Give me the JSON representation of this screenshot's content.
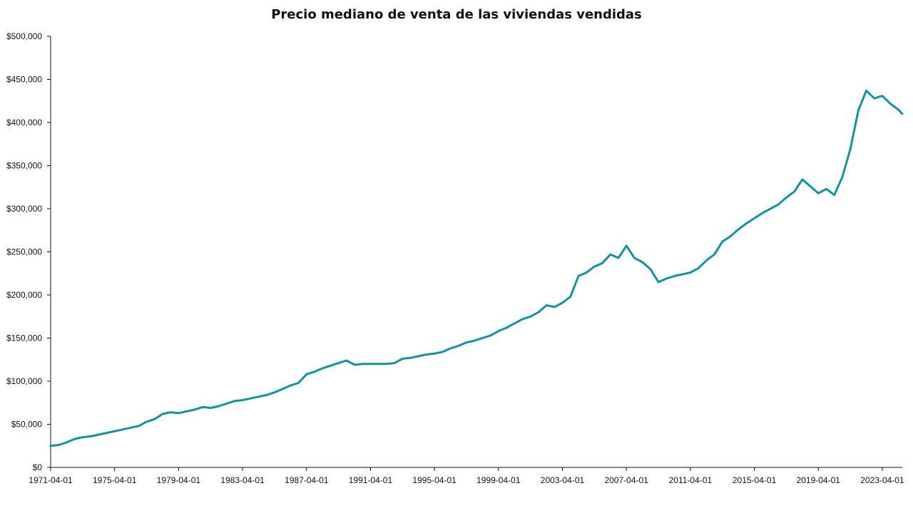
{
  "chart_data": {
    "type": "line",
    "title": "Precio mediano de venta de las viviendas vendidas",
    "xlabel": "",
    "ylabel": "",
    "ylim": [
      0,
      500000
    ],
    "grid": false,
    "line_color": "#1193a3",
    "y_ticks": [
      0,
      50000,
      100000,
      150000,
      200000,
      250000,
      300000,
      350000,
      400000,
      450000,
      500000
    ],
    "y_tick_labels": [
      "$0",
      "$50,000",
      "$100,000",
      "$150,000",
      "$200,000",
      "$250,000",
      "$300,000",
      "$350,000",
      "$400,000",
      "$450,000",
      "$500,000"
    ],
    "x_ticks": [
      "1971-04-01",
      "1975-04-01",
      "1979-04-01",
      "1983-04-01",
      "1987-04-01",
      "1991-04-01",
      "1995-04-01",
      "1999-04-01",
      "2003-04-01",
      "2007-04-01",
      "2011-04-01",
      "2015-04-01",
      "2019-04-01",
      "2023-04-01"
    ],
    "x_range": [
      "1971-04-01",
      "2024-07-01"
    ],
    "series": [
      {
        "x": [
          "1971-04-01",
          "1971-10-01",
          "1972-04-01",
          "1972-10-01",
          "1973-04-01",
          "1973-10-01",
          "1974-04-01",
          "1974-10-01",
          "1975-04-01",
          "1975-10-01",
          "1976-04-01",
          "1976-10-01",
          "1977-04-01",
          "1977-10-01",
          "1978-04-01",
          "1978-10-01",
          "1979-04-01",
          "1979-10-01",
          "1980-04-01",
          "1980-10-01",
          "1981-04-01",
          "1981-10-01",
          "1982-04-01",
          "1982-10-01",
          "1983-04-01",
          "1983-10-01",
          "1984-04-01",
          "1984-10-01",
          "1985-04-01",
          "1985-10-01",
          "1986-04-01",
          "1986-10-01",
          "1987-04-01",
          "1987-10-01",
          "1988-04-01",
          "1988-10-01",
          "1989-04-01",
          "1989-10-01",
          "1990-04-01",
          "1990-10-01",
          "1991-04-01",
          "1991-10-01",
          "1992-04-01",
          "1992-10-01",
          "1993-04-01",
          "1993-10-01",
          "1994-04-01",
          "1994-10-01",
          "1995-04-01",
          "1995-10-01",
          "1996-04-01",
          "1996-10-01",
          "1997-04-01",
          "1997-10-01",
          "1998-04-01",
          "1998-10-01",
          "1999-04-01",
          "1999-10-01",
          "2000-04-01",
          "2000-10-01",
          "2001-04-01",
          "2001-10-01",
          "2002-04-01",
          "2002-10-01",
          "2003-04-01",
          "2003-10-01",
          "2004-04-01",
          "2004-10-01",
          "2005-04-01",
          "2005-10-01",
          "2006-04-01",
          "2006-10-01",
          "2007-04-01",
          "2007-10-01",
          "2008-04-01",
          "2008-10-01",
          "2009-04-01",
          "2009-10-01",
          "2010-04-01",
          "2010-10-01",
          "2011-04-01",
          "2011-10-01",
          "2012-04-01",
          "2012-10-01",
          "2013-04-01",
          "2013-10-01",
          "2014-04-01",
          "2014-10-01",
          "2015-04-01",
          "2015-10-01",
          "2016-04-01",
          "2016-10-01",
          "2017-04-01",
          "2017-10-01",
          "2018-04-01",
          "2018-10-01",
          "2019-04-01",
          "2019-10-01",
          "2020-04-01",
          "2020-10-01",
          "2021-04-01",
          "2021-10-01",
          "2022-04-01",
          "2022-10-01",
          "2023-04-01",
          "2023-10-01",
          "2024-04-01",
          "2024-07-01"
        ],
        "values": [
          25000,
          26000,
          29000,
          33000,
          35000,
          36000,
          38000,
          40000,
          42000,
          44000,
          46000,
          48000,
          53000,
          56000,
          62000,
          64000,
          63000,
          65000,
          67000,
          70000,
          69000,
          71000,
          74000,
          77000,
          78000,
          80000,
          82000,
          84000,
          87000,
          91000,
          95000,
          98000,
          108000,
          111000,
          115000,
          118000,
          121000,
          124000,
          119000,
          120000,
          120000,
          120000,
          120000,
          121000,
          126000,
          127000,
          129000,
          131000,
          132000,
          134000,
          138000,
          141000,
          145000,
          147000,
          150000,
          153000,
          158000,
          162000,
          167000,
          172000,
          175000,
          180000,
          188000,
          186000,
          191000,
          198000,
          222000,
          226000,
          233000,
          237000,
          247000,
          243000,
          257000,
          243000,
          238000,
          230000,
          215000,
          219000,
          222000,
          224000,
          226000,
          231000,
          240000,
          247000,
          262000,
          268000,
          276000,
          283000,
          289000,
          295000,
          300000,
          305000,
          313000,
          320000,
          334000,
          326000,
          318000,
          323000,
          316000,
          337000,
          369000,
          414000,
          437000,
          428000,
          431000,
          422000,
          415000,
          410000
        ]
      }
    ]
  }
}
